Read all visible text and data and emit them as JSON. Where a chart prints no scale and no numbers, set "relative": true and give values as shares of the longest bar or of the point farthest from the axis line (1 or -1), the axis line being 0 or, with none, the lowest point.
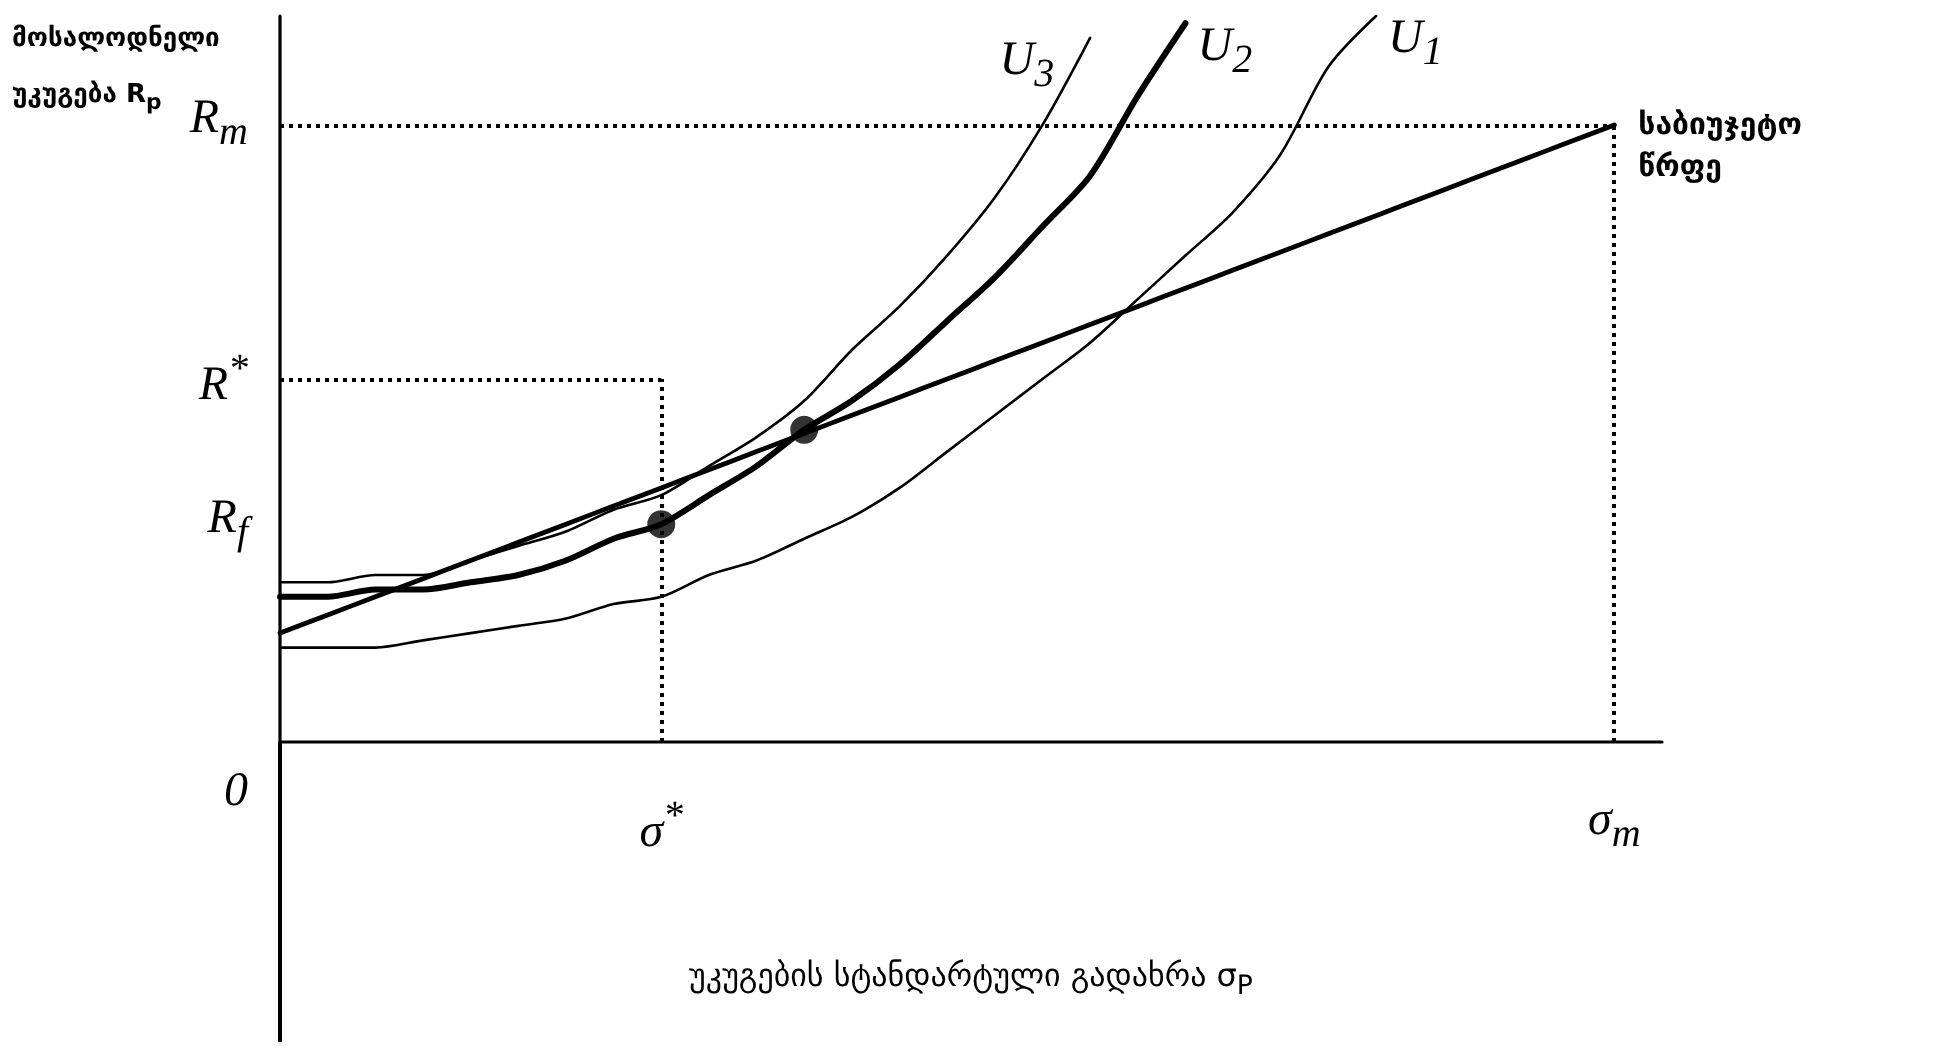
{
  "chart_data": {
    "type": "line",
    "relative": true,
    "marker": "none",
    "xlabel": "უკუგების სტანდარტული გადახრა σ$_{P}$",
    "ylabel": "მოსალოდნელი უკუგება R$_{p}$",
    "categories": [
      null,
      null,
      null,
      null,
      null,
      null,
      null,
      null,
      "σ$^{*}$",
      null,
      null,
      null,
      null,
      null,
      null,
      null,
      null,
      null,
      null,
      null,
      null,
      null,
      null,
      null,
      null,
      null,
      null,
      null,
      "σ$_{m}$",
      null
    ],
    "series": [
      {
        "name": "U$_{3}$",
        "color": "#000000",
        "values": [
          0.22,
          0.22,
          0.23,
          0.23,
          0.25,
          0.27,
          0.29,
          0.32,
          0.34,
          0.38,
          0.42,
          0.47,
          0.54,
          0.6,
          0.67,
          0.75,
          0.85,
          0.97,
          null,
          null,
          null,
          null,
          null,
          null,
          null,
          null,
          null,
          null,
          null,
          null
        ]
      },
      {
        "name": "U$_{2}$",
        "color": "#000000",
        "values": [
          0.2,
          0.2,
          0.21,
          0.21,
          0.22,
          0.23,
          0.25,
          0.28,
          0.3,
          0.34,
          0.38,
          0.43,
          0.47,
          0.52,
          0.58,
          0.64,
          0.71,
          0.78,
          0.89,
          0.99,
          null,
          null,
          null,
          null,
          null,
          null,
          null,
          null,
          null,
          null
        ]
      },
      {
        "name": "U$_{1}$",
        "color": "#000000",
        "values": [
          0.13,
          0.13,
          0.13,
          0.14,
          0.15,
          0.16,
          0.17,
          0.19,
          0.2,
          0.23,
          0.25,
          0.28,
          0.31,
          0.35,
          0.4,
          0.45,
          0.5,
          0.55,
          0.61,
          0.67,
          0.73,
          0.81,
          0.93,
          1.0,
          null,
          null,
          null,
          null,
          null,
          null
        ]
      },
      {
        "name": "საბიუჯეტო წრფე",
        "color": "#000000",
        "values": [
          0.15,
          0.175,
          0.2,
          0.225,
          0.25,
          0.275,
          0.3,
          0.325,
          0.35,
          0.375,
          0.4,
          0.425,
          0.45,
          0.475,
          0.5,
          0.525,
          0.55,
          0.575,
          0.6,
          0.625,
          0.65,
          0.675,
          0.7,
          0.725,
          0.75,
          0.775,
          0.8,
          0.825,
          0.85,
          null
        ]
      },
      {
        "type": "scatter",
        "marker": "circle",
        "color": "#000000",
        "values": [
          null,
          null,
          null,
          null,
          null,
          null,
          null,
          null,
          0.3,
          null,
          null,
          0.43,
          null,
          null,
          null,
          null,
          null,
          null,
          null,
          null,
          null,
          null,
          null,
          null,
          null,
          null,
          null,
          null,
          null,
          null
        ]
      }
    ],
    "ref_lines": [
      {
        "axis": "y",
        "value": 0.85,
        "label": "R$_{m}$",
        "color": "#000000",
        "line_style": "dotted"
      },
      {
        "axis": "x",
        "value": "σ$_{m}$",
        "color": "#000000",
        "line_style": "dotted"
      },
      {
        "axis": "y",
        "value": 0.5,
        "label": "R$^{*}$",
        "color": "#000000",
        "line_style": "dotted"
      },
      {
        "axis": "x",
        "value": "σ$^{*}$",
        "color": "#000000",
        "line_style": "dotted"
      }
    ],
    "annotations": [
      "R$_{f}$",
      "0"
    ]
  }
}
